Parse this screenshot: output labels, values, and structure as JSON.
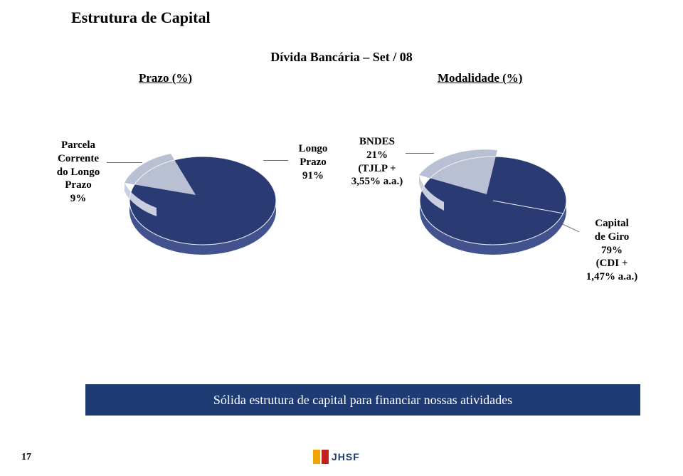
{
  "title": "Estrutura de Capital",
  "subtitle": "Dívida Bancária – Set / 08",
  "columns": {
    "left": "Prazo (%)",
    "right": "Modalidade (%)"
  },
  "pie_prazo": {
    "type": "pie",
    "background_color": "#ffffff",
    "slices": [
      {
        "label": "Parcela\nCorrente\ndo Longo\nPrazo\n9%",
        "value": 9,
        "color": "#b9c0d4",
        "exploded": true
      },
      {
        "label": "Longo\nPrazo\n91%",
        "value": 91,
        "color": "#2a3a73",
        "exploded": false
      }
    ],
    "edge_color": "#f2f2f2",
    "depth_color_light": "#c9cee0",
    "depth_color_dark": "#41528e",
    "label_fontsize": 15,
    "label_fontweight": "bold",
    "start_angle_deg": 180,
    "aspect": "3d-shallow"
  },
  "pie_modalidade": {
    "type": "pie",
    "background_color": "#ffffff",
    "slices": [
      {
        "label": "BNDES\n21%\n(TJLP +\n3,55% a.a.)",
        "value": 21,
        "color": "#b9c0d4",
        "exploded": true
      },
      {
        "label": "Capital\nde Giro\n79%\n(CDI +\n1,47% a.a.)",
        "value": 79,
        "color": "#2a3a73",
        "exploded": false
      }
    ],
    "edge_color": "#f2f2f2",
    "depth_color_light": "#c9cee0",
    "depth_color_dark": "#41528e",
    "label_fontsize": 15,
    "label_fontweight": "bold",
    "start_angle_deg": 175,
    "aspect": "3d-shallow"
  },
  "labels": {
    "prazo_small": "Parcela\nCorrente\ndo Longo\nPrazo\n9%",
    "prazo_big": "Longo\nPrazo\n91%",
    "mod_small": "BNDES\n21%\n(TJLP +\n3,55% a.a.)",
    "mod_big": "Capital\nde Giro\n79%\n(CDI +\n1,47% a.a.)"
  },
  "banner": "Sólida estrutura de capital para financiar nossas atividades",
  "page_number": "17",
  "logo_text": "JHSF",
  "colors": {
    "brand_blue": "#1f3b73",
    "slice_dark": "#2a3a73",
    "slice_light": "#b9c0d4",
    "logo_yellow": "#f0a500",
    "logo_red": "#c02020"
  }
}
